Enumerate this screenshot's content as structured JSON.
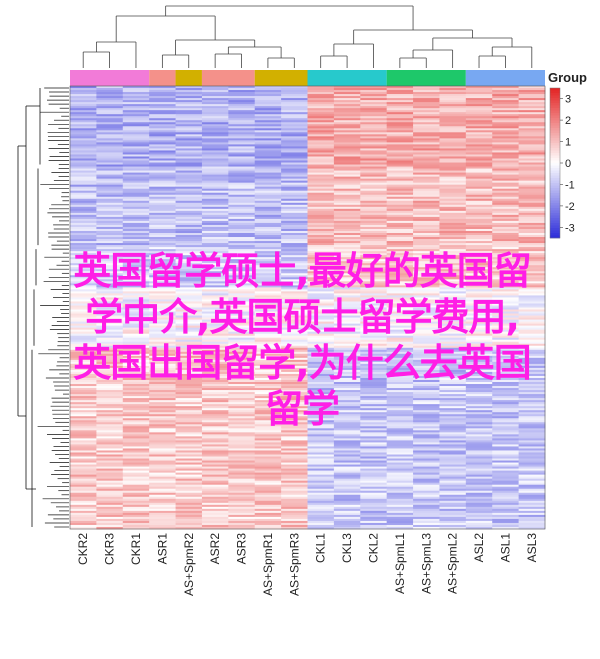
{
  "chart_data": {
    "type": "heatmap",
    "columns": [
      "CKR2",
      "CKR3",
      "CKR1",
      "ASR1",
      "AS+SpmR2",
      "ASR2",
      "ASR3",
      "AS+SpmR1",
      "AS+SpmR3",
      "CKL1",
      "CKL3",
      "CKL2",
      "AS+SpmL1",
      "AS+SpmL3",
      "AS+SpmL2",
      "ASL2",
      "ASL1",
      "ASL3"
    ],
    "column_groups": [
      {
        "color": "#f27bd8",
        "count": 3
      },
      {
        "color": "#f4918a",
        "count": 1
      },
      {
        "color": "#d2b000",
        "count": 1
      },
      {
        "color": "#f4918a",
        "count": 2
      },
      {
        "color": "#d2b000",
        "count": 2
      },
      {
        "color": "#27c9cc",
        "count": 3
      },
      {
        "color": "#1ec86a",
        "count": 3
      },
      {
        "color": "#78a8f2",
        "count": 3
      }
    ],
    "legend_title": "Group",
    "colorbar": {
      "ticks": [
        3,
        2,
        1,
        0,
        -1,
        -2,
        -3
      ],
      "range": [
        -3.5,
        3.5
      ],
      "colors": [
        "#2b2bd9",
        "#ffffff",
        "#e32222"
      ]
    },
    "row_count": 220,
    "row_clusters": [
      {
        "start": 0,
        "end": 40,
        "pattern": "blue-left-red-right",
        "strength": 1.0
      },
      {
        "start": 40,
        "end": 80,
        "pattern": "blue-left-red-right",
        "strength": 0.8
      },
      {
        "start": 80,
        "end": 100,
        "pattern": "blue-left-red-right",
        "strength": 0.6
      },
      {
        "start": 100,
        "end": 130,
        "pattern": "mixed",
        "strength": 0.3
      },
      {
        "start": 130,
        "end": 220,
        "pattern": "red-left-blue-right",
        "strength": 0.75
      }
    ]
  },
  "overlay_text": [
    "英国留学硕士,最好的英国留",
    "学中介,英国硕士留学费用,",
    "英国出国留学,为什么去英国",
    "留学"
  ]
}
